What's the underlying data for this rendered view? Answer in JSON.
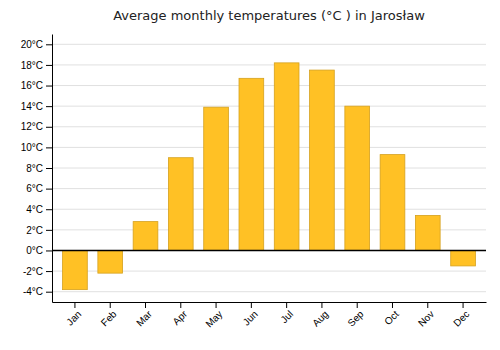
{
  "chart_data": {
    "type": "bar",
    "title": "Average monthly temperatures (°C ) in Jarosław",
    "categories": [
      "Jan",
      "Feb",
      "Mar",
      "Apr",
      "May",
      "Jun",
      "Jul",
      "Aug",
      "Sep",
      "Oct",
      "Nov",
      "Dec"
    ],
    "values": [
      -3.8,
      -2.2,
      2.8,
      9.0,
      13.9,
      16.7,
      18.2,
      17.5,
      14.0,
      9.3,
      3.4,
      -1.5
    ],
    "color": "#FFC125",
    "ylim": [
      -5,
      21
    ],
    "yticks": [
      {
        "value": -4,
        "label": "-4°C"
      },
      {
        "value": -2,
        "label": "-2°C"
      },
      {
        "value": 0,
        "label": "0°C"
      },
      {
        "value": 2,
        "label": "2°C"
      },
      {
        "value": 4,
        "label": "4°C"
      },
      {
        "value": 6,
        "label": "6°C"
      },
      {
        "value": 8,
        "label": "8°C"
      },
      {
        "value": 10,
        "label": "10°C"
      },
      {
        "value": 12,
        "label": "12°C"
      },
      {
        "value": 14,
        "label": "14°C"
      },
      {
        "value": 16,
        "label": "16°C"
      },
      {
        "value": 18,
        "label": "18°C"
      },
      {
        "value": 20,
        "label": "20°C"
      }
    ],
    "grid": true
  }
}
